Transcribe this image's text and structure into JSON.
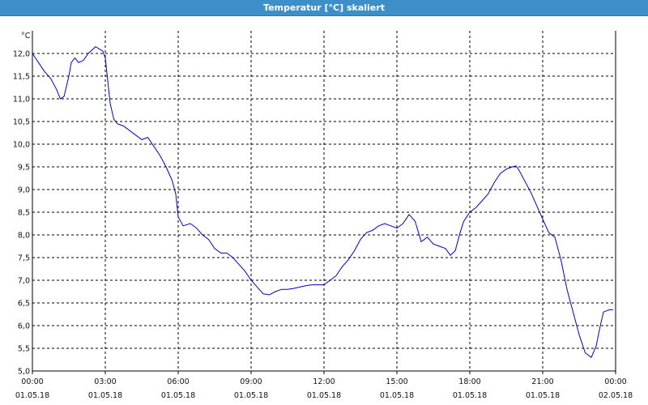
{
  "window": {
    "title": "Temperatur [°C] skaliert"
  },
  "chart_data": {
    "type": "line",
    "title": "Temperatur [°C] skaliert",
    "unit_label": "°C",
    "ylabel": "",
    "xlabel": "",
    "ylim": [
      5.0,
      12.5
    ],
    "xlim_hours": [
      0,
      24
    ],
    "y_ticks": [
      "5,0",
      "5,5",
      "6,0",
      "6,5",
      "7,0",
      "7,5",
      "8,0",
      "8,5",
      "9,0",
      "9,5",
      "10,0",
      "10,5",
      "11,0",
      "11,5",
      "12,0"
    ],
    "x_ticks": [
      {
        "time": "00:00",
        "date": "01.05.18"
      },
      {
        "time": "03:00",
        "date": "01.05.18"
      },
      {
        "time": "06:00",
        "date": "01.05.18"
      },
      {
        "time": "09:00",
        "date": "01.05.18"
      },
      {
        "time": "12:00",
        "date": "01.05.18"
      },
      {
        "time": "15:00",
        "date": "01.05.18"
      },
      {
        "time": "18:00",
        "date": "01.05.18"
      },
      {
        "time": "21:00",
        "date": "01.05.18"
      },
      {
        "time": "00:00",
        "date": "02.05.18"
      }
    ],
    "grid": true,
    "line_color": "#0000cc",
    "series": [
      {
        "x": [
          0,
          0.25,
          0.5,
          0.75,
          1.0,
          1.15,
          1.3,
          1.5,
          1.6,
          1.75,
          1.9,
          2.1,
          2.3,
          2.6,
          2.75,
          2.9,
          3.0,
          3.1,
          3.2,
          3.35,
          3.5,
          3.75,
          4.0,
          4.25,
          4.5,
          4.75,
          5.0,
          5.25,
          5.5,
          5.75,
          5.9,
          6.0,
          6.1,
          6.2,
          6.5,
          6.75,
          7.0,
          7.25,
          7.5,
          7.75,
          8.0,
          8.25,
          8.5,
          8.75,
          9.0,
          9.25,
          9.5,
          9.75,
          10.0,
          10.25,
          10.5,
          10.75,
          11.0,
          11.25,
          11.5,
          11.75,
          12.0,
          12.25,
          12.5,
          12.75,
          13.0,
          13.25,
          13.5,
          13.75,
          14.0,
          14.25,
          14.5,
          14.75,
          15.0,
          15.25,
          15.5,
          15.75,
          16.0,
          16.25,
          16.5,
          16.75,
          17.0,
          17.2,
          17.4,
          17.6,
          17.75,
          18.0,
          18.25,
          18.5,
          18.75,
          19.0,
          19.25,
          19.5,
          19.75,
          19.9,
          20.0,
          20.25,
          20.5,
          20.75,
          21.0,
          21.25,
          21.5,
          21.75,
          22.0,
          22.25,
          22.5,
          22.75,
          23.0,
          23.2,
          23.35,
          23.5,
          23.75,
          23.9
        ],
        "y": [
          12.0,
          11.8,
          11.6,
          11.45,
          11.2,
          11.0,
          11.05,
          11.5,
          11.8,
          11.9,
          11.8,
          11.85,
          12.0,
          12.15,
          12.1,
          12.05,
          11.9,
          11.4,
          10.9,
          10.55,
          10.45,
          10.4,
          10.3,
          10.2,
          10.1,
          10.15,
          9.95,
          9.75,
          9.5,
          9.2,
          8.9,
          8.4,
          8.3,
          8.2,
          8.25,
          8.15,
          8.0,
          7.9,
          7.7,
          7.6,
          7.6,
          7.5,
          7.35,
          7.2,
          7.0,
          6.85,
          6.7,
          6.68,
          6.75,
          6.8,
          6.8,
          6.82,
          6.85,
          6.88,
          6.9,
          6.9,
          6.9,
          7.0,
          7.1,
          7.3,
          7.45,
          7.65,
          7.9,
          8.05,
          8.1,
          8.2,
          8.25,
          8.2,
          8.15,
          8.25,
          8.45,
          8.3,
          7.85,
          7.95,
          7.8,
          7.75,
          7.7,
          7.55,
          7.65,
          8.05,
          8.3,
          8.5,
          8.6,
          8.75,
          8.9,
          9.15,
          9.35,
          9.45,
          9.5,
          9.52,
          9.45,
          9.2,
          8.95,
          8.65,
          8.35,
          8.05,
          7.95,
          7.45,
          6.8,
          6.3,
          5.8,
          5.4,
          5.3,
          5.55,
          5.95,
          6.3,
          6.35,
          6.35
        ]
      }
    ]
  }
}
